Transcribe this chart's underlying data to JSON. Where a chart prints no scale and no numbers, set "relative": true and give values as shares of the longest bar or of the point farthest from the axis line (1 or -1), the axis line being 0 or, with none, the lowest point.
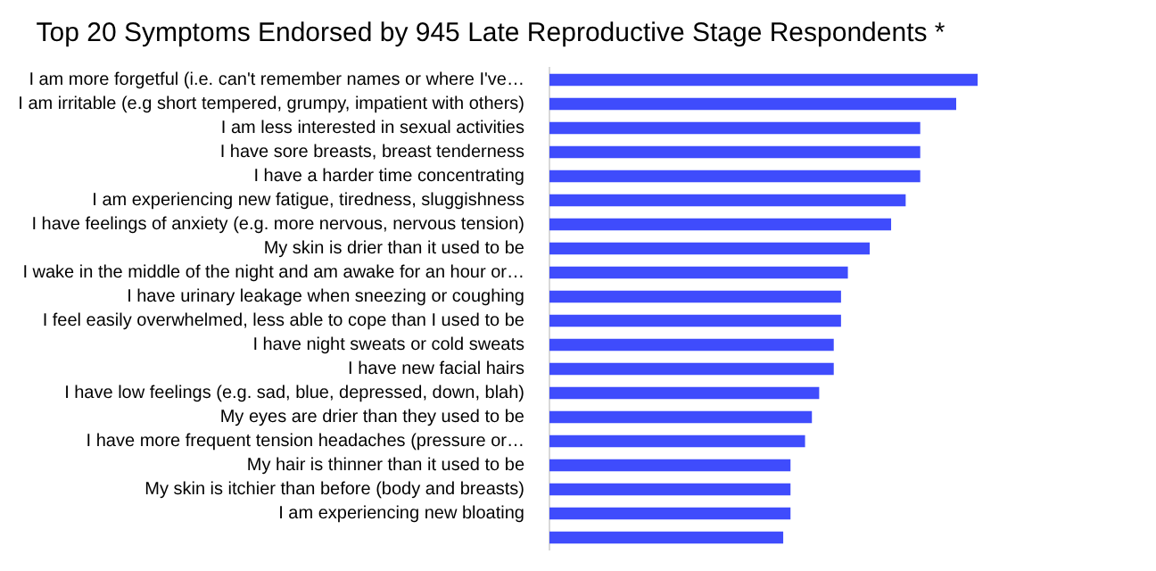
{
  "chart_data": {
    "type": "bar",
    "orientation": "horizontal",
    "relative": true,
    "title": "Top 20 Symptoms Endorsed by 945 Late Reproductive Stage Respondents *",
    "categories": [
      "I am more forgetful (i.e. can't remember names or where I've…",
      "I am irritable (e.g short tempered, grumpy, impatient with others)",
      "I am less interested in sexual activities",
      "I have sore breasts, breast tenderness",
      "I have a harder time concentrating",
      "I am experiencing new fatigue, tiredness, sluggishness",
      "I have feelings of anxiety (e.g. more nervous, nervous tension)",
      "My skin is drier than it used to be",
      "I wake in the middle of the night and am awake for an hour or…",
      "I have urinary leakage when sneezing or coughing",
      "I feel easily overwhelmed, less able to cope than I used to be",
      "I have night sweats or cold sweats",
      "I have new facial hairs",
      "I have low feelings (e.g. sad, blue, depressed, down, blah)",
      "My eyes are drier than they used to be",
      "I have more frequent tension headaches (pressure or…",
      "My hair is thinner than it used to be",
      "My skin is itchier than before (body and breasts)",
      "I am experiencing new bloating",
      null
    ],
    "values": [
      1,
      0.95,
      0.866,
      0.866,
      0.866,
      0.832,
      0.798,
      0.748,
      0.697,
      0.681,
      0.681,
      0.664,
      0.664,
      0.63,
      0.613,
      0.597,
      0.563,
      0.563,
      0.563,
      0.546
    ],
    "color": "#3f4cfc",
    "legend": false
  }
}
